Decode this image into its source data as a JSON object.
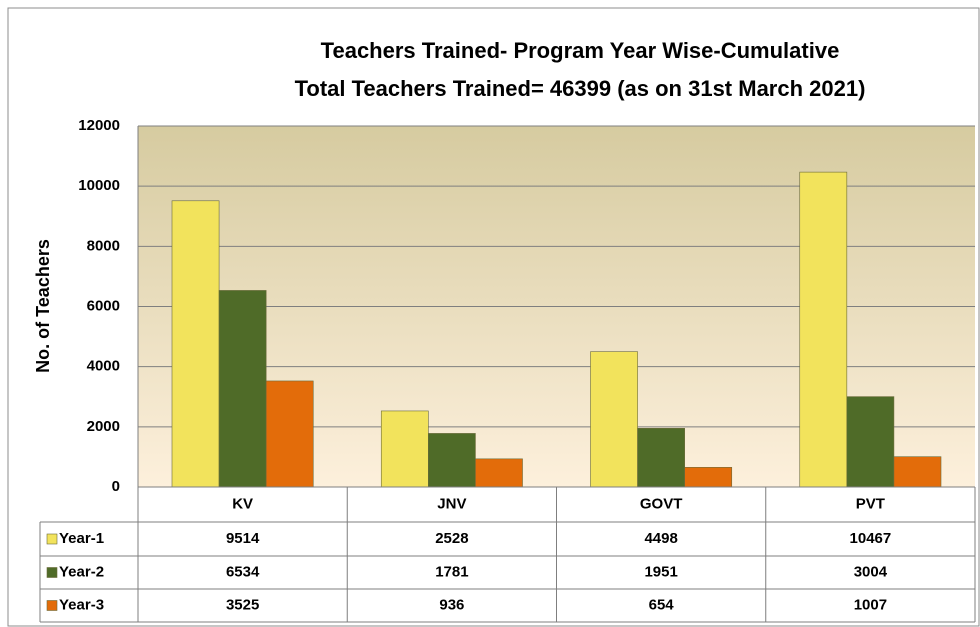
{
  "chart_data": {
    "type": "bar",
    "title": "Teachers Trained- Program Year Wise-Cumulative",
    "subtitle": "Total Teachers Trained= 46399 (as on 31st March 2021)",
    "y_label": "No. of Teachers",
    "categories": [
      "KV",
      "JNV",
      "GOVT",
      "PVT"
    ],
    "series": [
      {
        "name": "Year-1",
        "color": "#f2e35c",
        "values": [
          9514,
          2528,
          4498,
          10467
        ]
      },
      {
        "name": "Year-2",
        "color": "#4f6b28",
        "values": [
          6534,
          1781,
          1951,
          3004
        ]
      },
      {
        "name": "Year-3",
        "color": "#e36c0a",
        "values": [
          3525,
          936,
          654,
          1007
        ]
      }
    ],
    "ylim": [
      0,
      12000
    ],
    "yticks": [
      0,
      2000,
      4000,
      6000,
      8000,
      10000,
      12000
    ],
    "grid": true,
    "data_table": true
  }
}
